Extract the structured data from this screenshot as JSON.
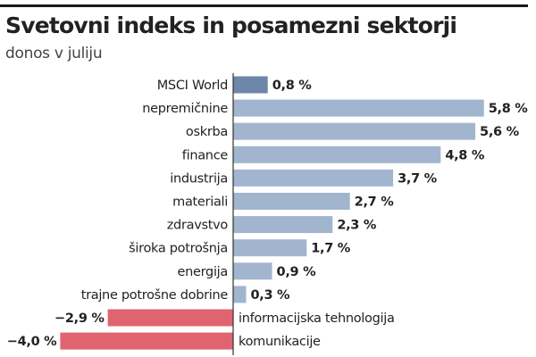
{
  "chart_data": {
    "type": "bar",
    "orientation": "horizontal",
    "title": "Svetovni indeks in posamezni sektorji",
    "subtitle": "donos v juliju",
    "xlabel": "",
    "ylabel": "",
    "unit": "%",
    "xlim": [
      -4.0,
      6.5
    ],
    "grid": false,
    "categories": [
      "MSCI World",
      "nepremičnine",
      "oskrba",
      "finance",
      "industrija",
      "materiali",
      "zdravstvo",
      "široka potrošnja",
      "energija",
      "trajne potrošne dobrine",
      "informacijska tehnologija",
      "komunikacije"
    ],
    "values": [
      0.8,
      5.8,
      5.6,
      4.8,
      3.7,
      2.7,
      2.3,
      1.7,
      0.9,
      0.3,
      -2.9,
      -4.0
    ],
    "value_labels": [
      "0,8 %",
      "5,8 %",
      "5,6 %",
      "4,8 %",
      "3,7 %",
      "2,7 %",
      "2,3 %",
      "1,7 %",
      "0,9 %",
      "0,3 %",
      "−2,9 %",
      "−4,0 %"
    ],
    "colors": {
      "index": "#6d86aa",
      "positive": "#a2b5cf",
      "negative": "#e0646f",
      "axis": "#333333"
    }
  }
}
